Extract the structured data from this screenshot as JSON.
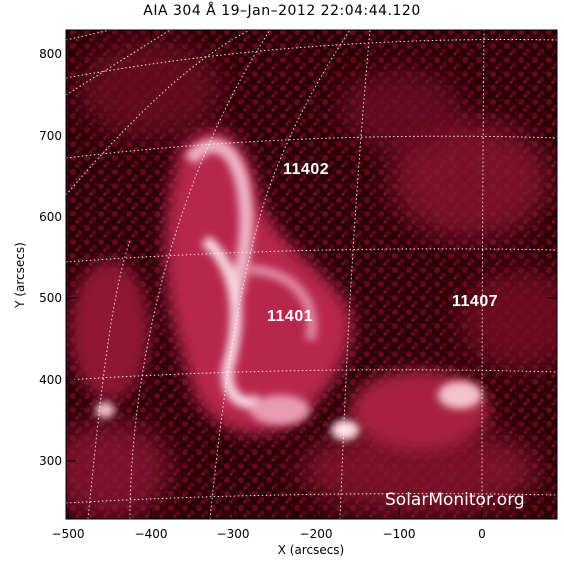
{
  "title": "AIA 304 Å 19–Jan–2012 22:04:44.120",
  "xaxis": {
    "label": "X (arcsecs)",
    "ticks": [
      "−500",
      "−400",
      "−300",
      "−200",
      "−100",
      "0"
    ]
  },
  "yaxis": {
    "label": "Y (arcsecs)",
    "ticks": [
      "800",
      "700",
      "600",
      "500",
      "400",
      "300"
    ]
  },
  "regions": [
    {
      "label": "11402"
    },
    {
      "label": "11401"
    },
    {
      "label": "11407"
    }
  ],
  "credit": "SolarMonitor.org",
  "colors": {
    "background": "#3a0009",
    "plasma": "#9a1a3a",
    "bright": "#f4c0cc",
    "grid": "#ffffff"
  }
}
